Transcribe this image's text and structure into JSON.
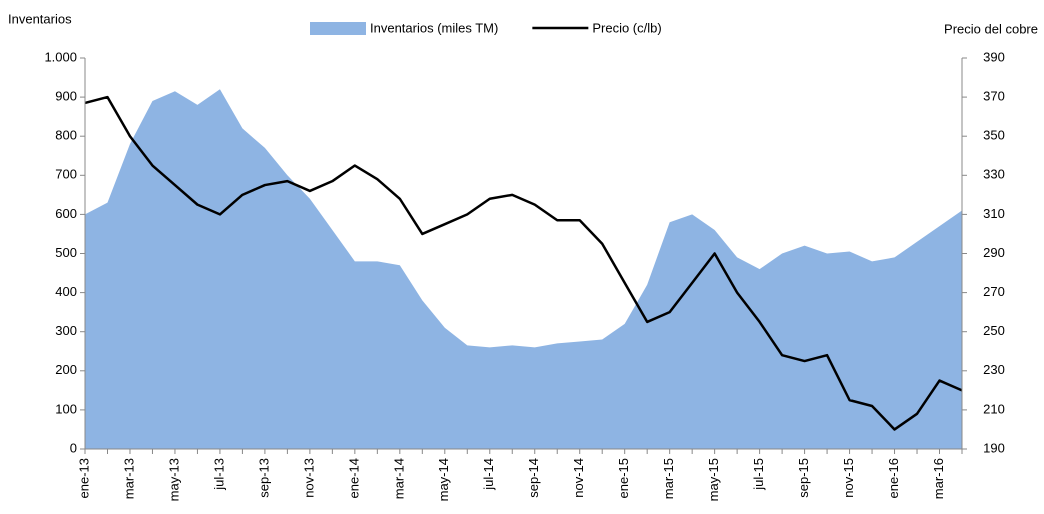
{
  "chart_data": {
    "type": "area_line",
    "y_label": "Inventarios",
    "y2_label": "Precio del cobre",
    "categories": [
      "ene-13",
      null,
      "mar-13",
      null,
      "may-13",
      null,
      "jul-13",
      null,
      "sep-13",
      null,
      "nov-13",
      null,
      "ene-14",
      null,
      "mar-14",
      null,
      "may-14",
      null,
      "jul-14",
      null,
      "sep-14",
      null,
      "nov-14",
      null,
      "ene-15",
      null,
      "mar-15",
      null,
      "may-15",
      null,
      "jul-15",
      null,
      "sep-15",
      null,
      "nov-15",
      null,
      "ene-16",
      null,
      "mar-16",
      null
    ],
    "series": [
      {
        "name": "Inventarios (miles TM)",
        "type": "area",
        "color": "#8eb4e3",
        "axis": "y",
        "values": [
          600,
          630,
          780,
          890,
          915,
          880,
          920,
          820,
          770,
          700,
          640,
          560,
          480,
          480,
          470,
          380,
          310,
          265,
          260,
          265,
          260,
          270,
          275,
          280,
          320,
          420,
          580,
          600,
          560,
          490,
          460,
          500,
          520,
          500,
          505,
          480,
          490,
          530,
          570,
          610
        ]
      },
      {
        "name": "Precio (c/lb)",
        "type": "line",
        "color": "#000000",
        "axis": "y2",
        "values": [
          367,
          370,
          350,
          335,
          325,
          315,
          310,
          320,
          325,
          327,
          322,
          327,
          335,
          328,
          318,
          300,
          305,
          310,
          318,
          320,
          315,
          307,
          307,
          295,
          275,
          255,
          260,
          275,
          290,
          270,
          255,
          238,
          235,
          238,
          215,
          212,
          200,
          208,
          225,
          220
        ]
      }
    ],
    "ylim": [
      0,
      1000
    ],
    "yticks": [
      0,
      100,
      200,
      300,
      400,
      500,
      600,
      700,
      800,
      900,
      {
        "value": 1000,
        "label": "1.000"
      }
    ],
    "y2lim": [
      190,
      390
    ],
    "y2ticks": [
      190,
      210,
      230,
      250,
      270,
      290,
      310,
      330,
      350,
      370,
      390
    ],
    "legend": "top"
  }
}
